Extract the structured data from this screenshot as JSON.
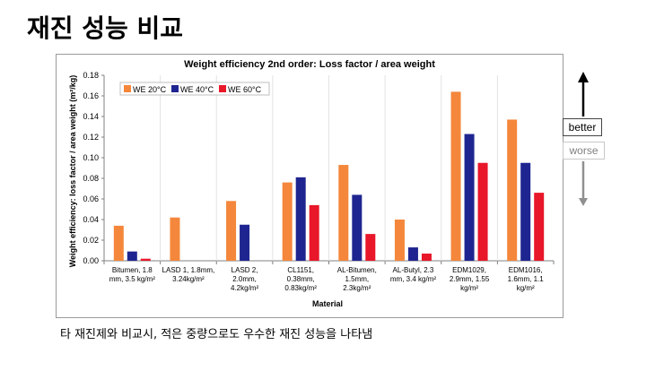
{
  "slide": {
    "title": "재진 성능 비교",
    "caption": "타 재진제와 비교시, 적은 중량으로도 우수한 재진 성능을 나타냄",
    "better_label": "better",
    "worse_label": "worse"
  },
  "colors": {
    "we20": "#f4873b",
    "we40": "#1f2590",
    "we60": "#e8172a"
  },
  "chart_data": {
    "type": "bar",
    "title": "Weight efficiency 2nd order:  Loss factor / area weight",
    "xlabel": "Material",
    "ylabel": "Weight efficiency: loss factor / area weight (m²/kg)",
    "ylim": [
      0,
      0.18
    ],
    "yticks": [
      "0.00",
      "0.02",
      "0.04",
      "0.06",
      "0.08",
      "0.10",
      "0.12",
      "0.14",
      "0.16",
      "0.18"
    ],
    "grid": false,
    "legend_position": "top-left",
    "categories": [
      [
        "Bitumen, 1.8",
        "mm, 3.5 kg/m²"
      ],
      [
        "LASD 1, 1.8mm,",
        "3.24kg/m²"
      ],
      [
        "LASD 2,",
        "2.0mm,",
        "4.2kg/m²"
      ],
      [
        "CL1151,",
        "0.38mm,",
        "0.83kg/m²"
      ],
      [
        "AL-Bitumen,",
        "1.5mm,",
        "2.3kg/m²"
      ],
      [
        "AL-Butyl, 2.3",
        "mm, 3.4 kg/m²"
      ],
      [
        "EDM1029,",
        "2.9mm, 1.55",
        "kg/m²"
      ],
      [
        "EDM1016,",
        "1.6mm, 1.1",
        "kg/m²"
      ]
    ],
    "series": [
      {
        "name": "WE 20°C",
        "color": "#f4873b",
        "values": [
          0.034,
          0.042,
          0.058,
          0.076,
          0.093,
          0.04,
          0.164,
          0.137
        ]
      },
      {
        "name": "WE 40°C",
        "color": "#1f2590",
        "values": [
          0.009,
          null,
          0.035,
          0.081,
          0.064,
          0.013,
          0.123,
          0.095
        ]
      },
      {
        "name": "WE 60°C",
        "color": "#e8172a",
        "values": [
          0.002,
          null,
          null,
          0.054,
          0.026,
          0.007,
          0.095,
          0.066
        ]
      }
    ]
  }
}
